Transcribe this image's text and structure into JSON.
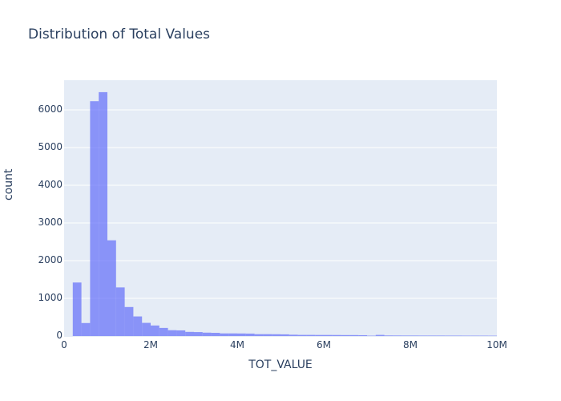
{
  "title": "Distribution of Total Values",
  "xaxis": {
    "label": "TOT_VALUE",
    "ticks": [
      "0",
      "2M",
      "4M",
      "6M",
      "8M",
      "10M"
    ]
  },
  "yaxis": {
    "label": "count",
    "ticks": [
      "0",
      "1000",
      "2000",
      "3000",
      "4000",
      "5000",
      "6000"
    ]
  },
  "colors": {
    "bar": "#636efa",
    "plot_bg": "#e5ecf6",
    "text": "#2a3f5f"
  },
  "chart_data": {
    "type": "bar",
    "title": "Distribution of Total Values",
    "xlabel": "TOT_VALUE",
    "ylabel": "count",
    "bin_width": 200000,
    "xlim": [
      0,
      10000000
    ],
    "ylim": [
      0,
      6800
    ],
    "grid": true,
    "legend": "none",
    "bin_starts": [
      0,
      200000,
      400000,
      600000,
      800000,
      1000000,
      1200000,
      1400000,
      1600000,
      1800000,
      2000000,
      2200000,
      2400000,
      2600000,
      2800000,
      3000000,
      3200000,
      3400000,
      3600000,
      3800000,
      4000000,
      4200000,
      4400000,
      4600000,
      4800000,
      5000000,
      5200000,
      5400000,
      5600000,
      5800000,
      6000000,
      6200000,
      6400000,
      6600000,
      6800000,
      7000000,
      7200000,
      7400000,
      7600000,
      7800000,
      8000000,
      8200000,
      8400000,
      8600000,
      8800000,
      9000000,
      9200000,
      9400000,
      9600000,
      9800000
    ],
    "values": [
      0,
      1420,
      345,
      6230,
      6470,
      2540,
      1290,
      770,
      520,
      350,
      280,
      215,
      155,
      150,
      110,
      105,
      90,
      85,
      70,
      70,
      68,
      65,
      50,
      50,
      48,
      45,
      35,
      30,
      30,
      28,
      28,
      27,
      25,
      25,
      22,
      10,
      30,
      15,
      14,
      13,
      13,
      12,
      12,
      12,
      11,
      11,
      10,
      10,
      10,
      9
    ]
  }
}
